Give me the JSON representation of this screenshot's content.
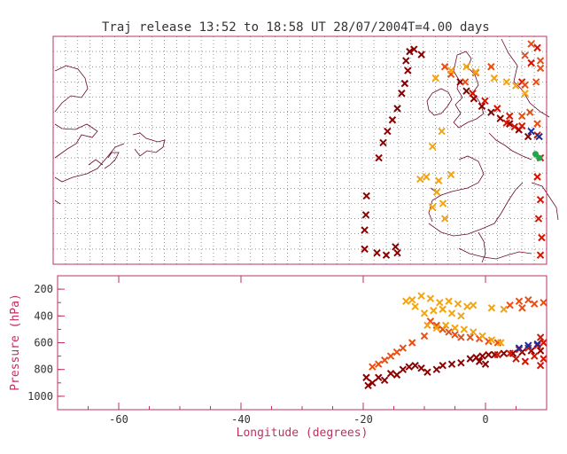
{
  "title": "Traj release 13:52 to 18:58 UT 28/07/2004",
  "period": "T=4.00 days",
  "colors": {
    "dark_red": "#8b0000",
    "red": "#d41400",
    "orange_red": "#ea4e12",
    "orange": "#f3a412",
    "blue": "#1c2c9e",
    "green": "#1fa84a",
    "axis": "#c03060",
    "coast": "#6a0a2a"
  },
  "chart_data": [
    {
      "type": "scatter",
      "name": "map",
      "xlim": [
        -70,
        10
      ],
      "ylim": [
        35,
        65
      ],
      "grid": true,
      "series": [
        {
          "color": "dark_red",
          "points": [
            [
              -19.5,
              37.0
            ],
            [
              -19.5,
              39.5
            ],
            [
              -19.3,
              41.5
            ],
            [
              -19.2,
              44.0
            ],
            [
              -17.2,
              49.0
            ],
            [
              -16.5,
              51.0
            ],
            [
              -15.8,
              52.5
            ],
            [
              -15.0,
              54.0
            ],
            [
              -14.2,
              55.5
            ],
            [
              -13.5,
              57.5
            ],
            [
              -13.0,
              58.8
            ],
            [
              -12.5,
              60.5
            ],
            [
              -12.8,
              61.8
            ],
            [
              -12.2,
              63.0
            ],
            [
              -11.5,
              63.3
            ],
            [
              -10.3,
              62.6
            ],
            [
              -17.5,
              36.5
            ],
            [
              -16.0,
              36.2
            ],
            [
              -14.2,
              36.5
            ],
            [
              -14.5,
              37.3
            ],
            [
              -4.0,
              59.0
            ],
            [
              -3.0,
              57.8
            ],
            [
              -1.8,
              56.8
            ],
            [
              -0.5,
              55.8
            ],
            [
              1.0,
              55.0
            ],
            [
              2.5,
              54.2
            ],
            [
              4.0,
              53.5
            ],
            [
              5.5,
              52.7
            ],
            [
              7.0,
              51.8
            ]
          ]
        },
        {
          "color": "red",
          "points": [
            [
              -2.0,
              57.5
            ],
            [
              0.0,
              56.5
            ],
            [
              2.0,
              55.5
            ],
            [
              4.0,
              54.5
            ],
            [
              6.0,
              53.2
            ],
            [
              8.5,
              52.0
            ],
            [
              9.0,
              49.0
            ],
            [
              8.5,
              46.5
            ],
            [
              9.0,
              43.5
            ],
            [
              8.7,
              41.0
            ],
            [
              9.2,
              38.5
            ],
            [
              9.0,
              36.2
            ],
            [
              6.0,
              59.0
            ],
            [
              7.5,
              61.5
            ],
            [
              8.5,
              63.5
            ],
            [
              3.5,
              53.6
            ],
            [
              4.8,
              53.1
            ]
          ]
        },
        {
          "color": "orange_red",
          "points": [
            [
              -6.5,
              61.0
            ],
            [
              -5.5,
              60.0
            ],
            [
              -3.2,
              59.0
            ],
            [
              -1.5,
              60.2
            ],
            [
              1.0,
              61.0
            ],
            [
              6.5,
              58.6
            ],
            [
              8.3,
              59.0
            ],
            [
              9.0,
              60.8
            ],
            [
              6.5,
              62.5
            ],
            [
              7.5,
              64.0
            ],
            [
              9.0,
              61.8
            ],
            [
              6.0,
              54.5
            ],
            [
              8.5,
              53.5
            ],
            [
              7.3,
              55.0
            ]
          ]
        },
        {
          "color": "orange",
          "points": [
            [
              -8.0,
              59.5
            ],
            [
              -5.5,
              60.5
            ],
            [
              -3.0,
              61.0
            ],
            [
              -1.5,
              60.3
            ],
            [
              1.5,
              59.5
            ],
            [
              3.5,
              59.0
            ],
            [
              5.0,
              58.5
            ],
            [
              6.5,
              57.5
            ],
            [
              -7.0,
              52.5
            ],
            [
              -8.5,
              50.5
            ],
            [
              -9.5,
              46.5
            ],
            [
              -10.5,
              46.2
            ],
            [
              -7.5,
              46.0
            ],
            [
              -5.5,
              46.8
            ],
            [
              -7.8,
              44.5
            ],
            [
              -6.8,
              43.0
            ],
            [
              -8.5,
              42.5
            ],
            [
              -6.5,
              41.0
            ]
          ]
        },
        {
          "color": "blue",
          "points": [
            [
              7.5,
              52.5
            ],
            [
              8.8,
              51.8
            ]
          ]
        },
        {
          "color": "green",
          "points": [
            [
              8.2,
              49.5
            ],
            [
              8.8,
              49.0
            ]
          ]
        }
      ]
    },
    {
      "type": "scatter",
      "name": "pressure",
      "xlabel": "Longitude  (degrees)",
      "ylabel": "Pressure  (hPa)",
      "xlim": [
        -70,
        10
      ],
      "ylim": [
        1100,
        100
      ],
      "xticks": [
        -60,
        -40,
        -20,
        0
      ],
      "xtick_labels": [
        "-60",
        "-40",
        "-20",
        "0"
      ],
      "yticks": [
        200,
        400,
        600,
        800,
        1000
      ],
      "ytick_labels": [
        "200",
        "400",
        "600",
        "800",
        "1000"
      ],
      "series": [
        {
          "color": "dark_red",
          "points": [
            [
              -19.5,
              860
            ],
            [
              -19.2,
              920
            ],
            [
              -18.5,
              900
            ],
            [
              -17.5,
              860
            ],
            [
              -16.5,
              880
            ],
            [
              -15.5,
              830
            ],
            [
              -14.5,
              840
            ],
            [
              -13.5,
              800
            ],
            [
              -12.5,
              780
            ],
            [
              -11.5,
              770
            ],
            [
              -10.5,
              790
            ],
            [
              -9.5,
              820
            ],
            [
              -8.0,
              800
            ],
            [
              -7.0,
              770
            ],
            [
              -5.5,
              760
            ],
            [
              -4.0,
              750
            ],
            [
              -2.5,
              720
            ],
            [
              -1.5,
              710
            ],
            [
              -0.5,
              700
            ],
            [
              0.5,
              690
            ],
            [
              1.5,
              690
            ],
            [
              3.0,
              680
            ],
            [
              4.5,
              680
            ],
            [
              6.0,
              670
            ],
            [
              7.5,
              660
            ],
            [
              9.0,
              660
            ],
            [
              -1.0,
              740
            ],
            [
              0.0,
              760
            ]
          ]
        },
        {
          "color": "red",
          "points": [
            [
              2.0,
              690
            ],
            [
              4.0,
              680
            ],
            [
              5.5,
              650
            ],
            [
              7.0,
              640
            ],
            [
              8.5,
              620
            ],
            [
              9.5,
              600
            ],
            [
              9.0,
              560
            ],
            [
              8.0,
              700
            ],
            [
              9.5,
              720
            ],
            [
              5.0,
              720
            ],
            [
              6.5,
              740
            ],
            [
              9.0,
              770
            ]
          ]
        },
        {
          "color": "orange_red",
          "points": [
            [
              -9.0,
              440
            ],
            [
              -8.0,
              470
            ],
            [
              -7.0,
              500
            ],
            [
              -6.0,
              520
            ],
            [
              -5.0,
              540
            ],
            [
              -4.0,
              560
            ],
            [
              -2.5,
              560
            ],
            [
              -1.0,
              570
            ],
            [
              0.5,
              590
            ],
            [
              2.0,
              600
            ],
            [
              -10.0,
              550
            ],
            [
              -12.0,
              600
            ],
            [
              -13.5,
              640
            ],
            [
              -14.5,
              670
            ],
            [
              -15.5,
              700
            ],
            [
              -16.5,
              730
            ],
            [
              -17.5,
              760
            ],
            [
              -18.5,
              780
            ],
            [
              4.0,
              320
            ],
            [
              6.0,
              340
            ],
            [
              8.0,
              310
            ],
            [
              9.5,
              300
            ],
            [
              5.5,
              290
            ],
            [
              7.0,
              280
            ]
          ]
        },
        {
          "color": "orange",
          "points": [
            [
              -12.0,
              280
            ],
            [
              -10.5,
              250
            ],
            [
              -9.0,
              270
            ],
            [
              -7.5,
              300
            ],
            [
              -6.0,
              290
            ],
            [
              -4.5,
              310
            ],
            [
              -3.0,
              330
            ],
            [
              -2.0,
              320
            ],
            [
              -10.0,
              380
            ],
            [
              -8.5,
              360
            ],
            [
              -7.0,
              350
            ],
            [
              -9.5,
              470
            ],
            [
              -8.0,
              490
            ],
            [
              -6.5,
              470
            ],
            [
              -5.0,
              490
            ],
            [
              -3.5,
              500
            ],
            [
              -2.0,
              520
            ],
            [
              -0.5,
              550
            ],
            [
              1.0,
              580
            ],
            [
              2.5,
              600
            ],
            [
              -11.5,
              330
            ],
            [
              -13.0,
              290
            ],
            [
              -5.5,
              380
            ],
            [
              -4.0,
              400
            ],
            [
              1.0,
              340
            ],
            [
              3.0,
              350
            ]
          ]
        },
        {
          "color": "blue",
          "points": [
            [
              5.5,
              640
            ],
            [
              7.0,
              620
            ],
            [
              8.5,
              610
            ]
          ]
        }
      ]
    }
  ]
}
